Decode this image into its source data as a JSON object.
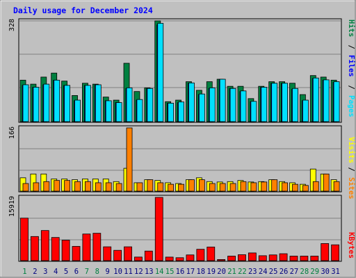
{
  "chart_data": [
    {
      "type": "bar",
      "title": "Daily usage for December 2024",
      "panel": "hits-files-pages",
      "categories": [
        "1",
        "2",
        "3",
        "4",
        "5",
        "6",
        "7",
        "8",
        "9",
        "10",
        "11",
        "12",
        "13",
        "14",
        "15",
        "16",
        "17",
        "18",
        "19",
        "20",
        "21",
        "22",
        "23",
        "24",
        "25",
        "26",
        "27",
        "28",
        "29",
        "30",
        "31"
      ],
      "ymax_label": "328",
      "ylim": [
        0,
        328
      ],
      "series": [
        {
          "name": "Hits",
          "color": "#008040",
          "values": [
            135,
            122,
            145,
            158,
            132,
            85,
            125,
            122,
            80,
            70,
            190,
            98,
            110,
            328,
            65,
            70,
            130,
            102,
            130,
            138,
            115,
            115,
            75,
            115,
            130,
            130,
            125,
            88,
            150,
            145,
            135
          ]
        },
        {
          "name": "Files",
          "color": "#0000ff",
          "values": [
            118,
            112,
            120,
            135,
            118,
            68,
            118,
            120,
            68,
            62,
            108,
            70,
            108,
            315,
            60,
            62,
            125,
            88,
            108,
            138,
            108,
            98,
            65,
            112,
            125,
            125,
            105,
            68,
            140,
            135,
            128
          ]
        },
        {
          "name": "Pages",
          "color": "#00e0ff",
          "values": [
            120,
            112,
            122,
            135,
            118,
            70,
            118,
            120,
            68,
            62,
            110,
            72,
            108,
            320,
            60,
            64,
            126,
            90,
            110,
            138,
            108,
            100,
            66,
            112,
            125,
            125,
            108,
            70,
            142,
            136,
            130
          ]
        }
      ]
    },
    {
      "type": "bar",
      "panel": "visits-sites",
      "categories": [
        "1",
        "2",
        "3",
        "4",
        "5",
        "6",
        "7",
        "8",
        "9",
        "10",
        "11",
        "12",
        "13",
        "14",
        "15",
        "16",
        "17",
        "18",
        "19",
        "20",
        "21",
        "22",
        "23",
        "24",
        "25",
        "26",
        "27",
        "28",
        "29",
        "30",
        "31"
      ],
      "ymax_label": "166",
      "ylim": [
        0,
        166
      ],
      "series": [
        {
          "name": "Visits",
          "color": "#ffff00",
          "values": [
            35,
            45,
            45,
            32,
            32,
            30,
            32,
            32,
            32,
            25,
            60,
            22,
            30,
            28,
            22,
            20,
            30,
            35,
            25,
            24,
            25,
            28,
            24,
            25,
            30,
            25,
            22,
            18,
            58,
            45,
            30
          ]
        },
        {
          "name": "Sites",
          "color": "#ff8000",
          "values": [
            20,
            22,
            25,
            28,
            28,
            25,
            25,
            22,
            22,
            20,
            166,
            22,
            30,
            22,
            18,
            18,
            30,
            30,
            20,
            20,
            20,
            25,
            22,
            24,
            30,
            22,
            18,
            15,
            25,
            45,
            25
          ]
        }
      ]
    },
    {
      "type": "bar",
      "panel": "kbytes",
      "categories": [
        "1",
        "2",
        "3",
        "4",
        "5",
        "6",
        "7",
        "8",
        "9",
        "10",
        "11",
        "12",
        "13",
        "14",
        "15",
        "16",
        "17",
        "18",
        "19",
        "20",
        "21",
        "22",
        "23",
        "24",
        "25",
        "26",
        "27",
        "28",
        "29",
        "30",
        "31"
      ],
      "ymax_label": "15919",
      "ylim": [
        0,
        15919
      ],
      "series": [
        {
          "name": "KBytes",
          "color": "#ff0000",
          "values": [
            10700,
            6070,
            7580,
            5830,
            5150,
            3590,
            6700,
            6890,
            3480,
            2590,
            3480,
            900,
            2410,
            15919,
            890,
            740,
            1440,
            2860,
            3430,
            280,
            1140,
            1490,
            1940,
            1240,
            1440,
            1740,
            1140,
            1140,
            1140,
            4300,
            3980
          ]
        }
      ]
    }
  ],
  "x_weekend_color": "#008040",
  "x_weekday_color": "#000080",
  "weekend_days": [
    1,
    7,
    8,
    14,
    15,
    21,
    22,
    28,
    29
  ],
  "right_labels": {
    "pages": "Pages",
    "files": "Files",
    "hits": "Hits",
    "sites": "Sites",
    "visits": "Visits",
    "kbytes": "KBytes",
    "sep": " / "
  }
}
